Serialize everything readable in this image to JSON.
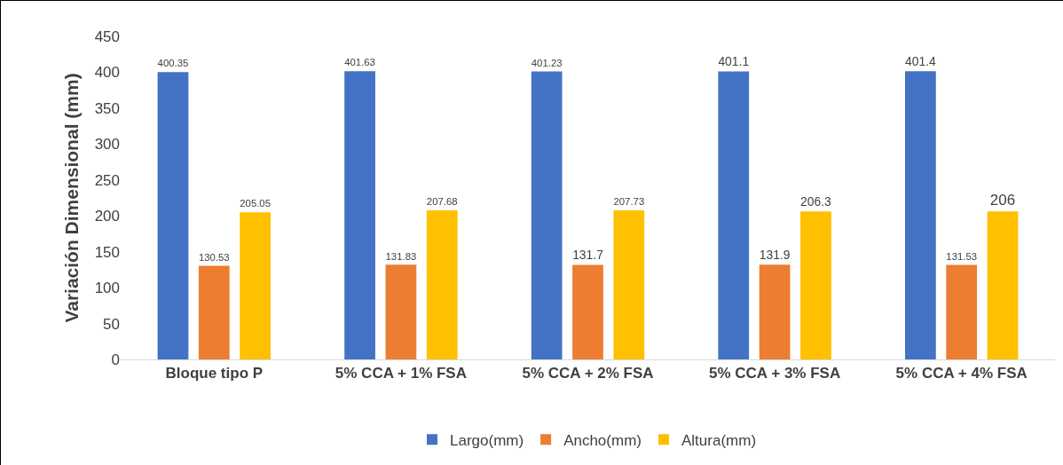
{
  "chart_data": {
    "type": "bar",
    "ylabel": "Variación Dimensional (mm)",
    "categories": [
      "Bloque tipo P",
      "5% CCA + 1% FSA",
      "5% CCA + 2% FSA",
      "5% CCA + 3% FSA",
      "5% CCA + 4% FSA"
    ],
    "series": [
      {
        "name": "Largo(mm)",
        "color": "#4472c4",
        "values": [
          400.35,
          401.63,
          401.23,
          401.1,
          401.4
        ]
      },
      {
        "name": "Ancho(mm)",
        "color": "#ed7d31",
        "values": [
          130.53,
          131.83,
          131.7,
          131.9,
          131.53
        ]
      },
      {
        "name": "Altura(mm)",
        "color": "#ffc000",
        "values": [
          205.05,
          207.68,
          207.73,
          206.3,
          206
        ]
      }
    ],
    "ylim": [
      0,
      450
    ],
    "yticks": [
      0,
      50,
      100,
      150,
      200,
      250,
      300,
      350,
      400,
      450
    ],
    "grid": false,
    "legend": "bottom",
    "data_labels": true
  }
}
